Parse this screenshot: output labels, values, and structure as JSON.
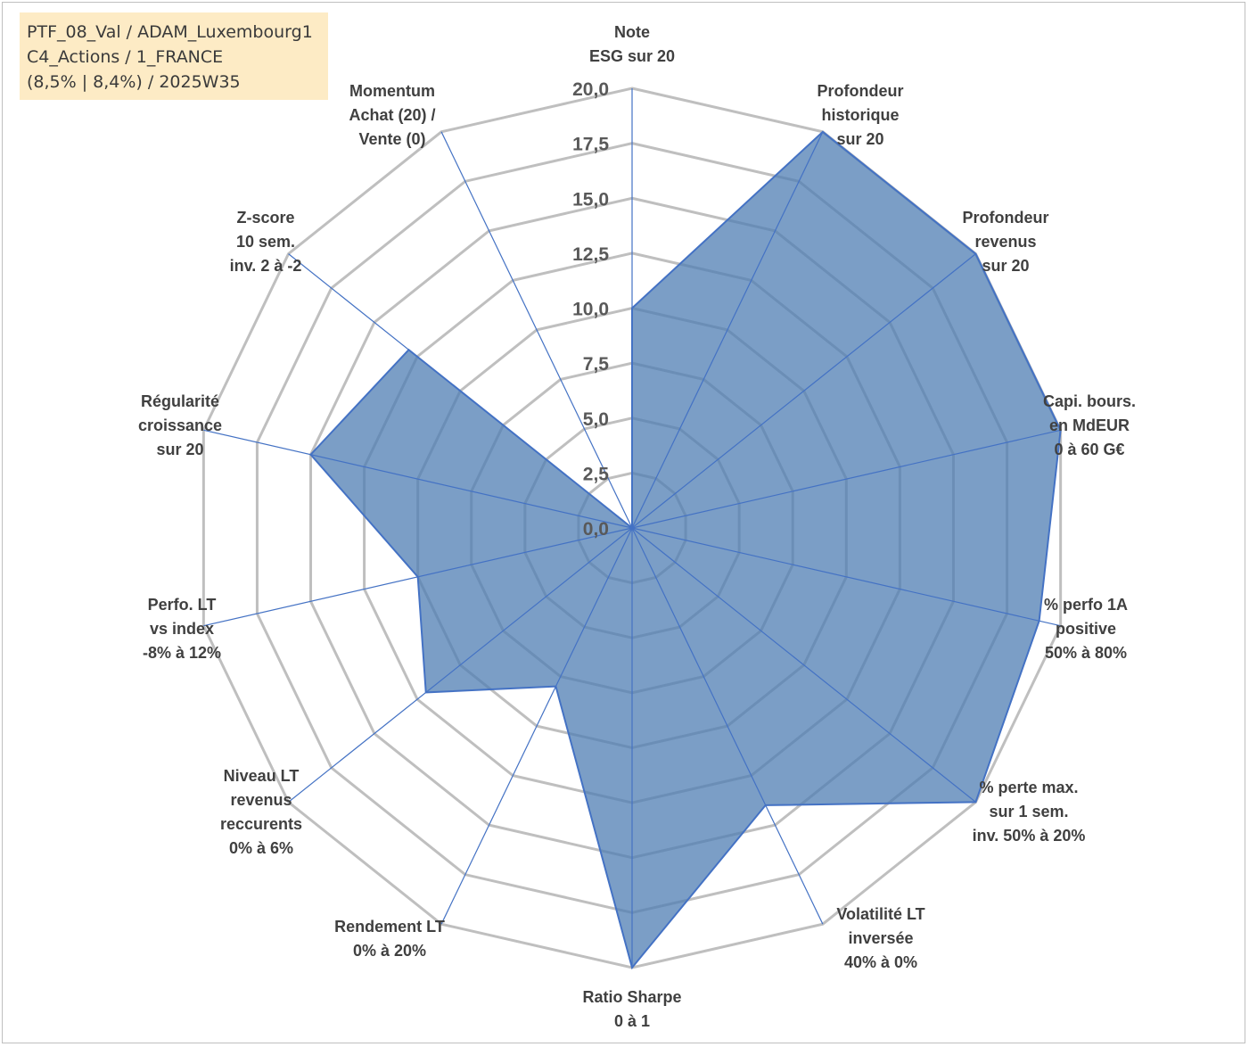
{
  "info_box": {
    "line1": "PTF_08_Val / ADAM_Luxembourg1",
    "line2": "C4_Actions / 1_FRANCE",
    "line3": "(8,5% | 8,4%) / 2025W35"
  },
  "chart_data": {
    "type": "radar",
    "rmax": 20,
    "ticks": [
      "0,0",
      "2,5",
      "5,0",
      "7,5",
      "10,0",
      "12,5",
      "15,0",
      "17,5",
      "20,0"
    ],
    "tick_values": [
      0,
      2.5,
      5,
      7.5,
      10,
      12.5,
      15,
      17.5,
      20
    ],
    "grid": true,
    "colors": {
      "fill": "#4f7db3",
      "fill_opacity": 0.75,
      "stroke": "#4472c4",
      "spoke": "#4472c4",
      "grid": "#bfbfbf"
    },
    "axes": [
      {
        "label": [
          "Note",
          "ESG sur 20"
        ],
        "value": 10.0
      },
      {
        "label": [
          "Profondeur",
          "historique",
          "sur 20"
        ],
        "value": 20.0
      },
      {
        "label": [
          "Profondeur",
          "revenus",
          "sur 20"
        ],
        "value": 20.0
      },
      {
        "label": [
          "Capi. bours.",
          "en MdEUR",
          "0 à 60 G€"
        ],
        "value": 20.0
      },
      {
        "label": [
          "% perfo 1A",
          "positive",
          "50% à 80%"
        ],
        "value": 19.0
      },
      {
        "label": [
          "% perte max.",
          "sur 1 sem.",
          "inv. 50% à 20%"
        ],
        "value": 20.0
      },
      {
        "label": [
          "Volatilité LT",
          "inversée",
          "40% à 0%"
        ],
        "value": 14.0
      },
      {
        "label": [
          "Ratio Sharpe",
          "0 à 1"
        ],
        "value": 20.0
      },
      {
        "label": [
          "Rendement LT",
          "0% à 20%"
        ],
        "value": 8.0
      },
      {
        "label": [
          "Niveau LT",
          "revenus",
          "reccurents",
          "0% à 6%"
        ],
        "value": 12.0
      },
      {
        "label": [
          "Perfo. LT",
          "vs index",
          "-8% à 12%"
        ],
        "value": 10.0
      },
      {
        "label": [
          "Régularité",
          "croissance",
          "sur 20"
        ],
        "value": 15.0
      },
      {
        "label": [
          "Z-score",
          "10 sem.",
          "inv. 2 à -2"
        ],
        "value": 13.0
      },
      {
        "label": [
          "Momentum",
          "Achat (20) /",
          "Vente (0)"
        ],
        "value": 0.0
      }
    ]
  }
}
